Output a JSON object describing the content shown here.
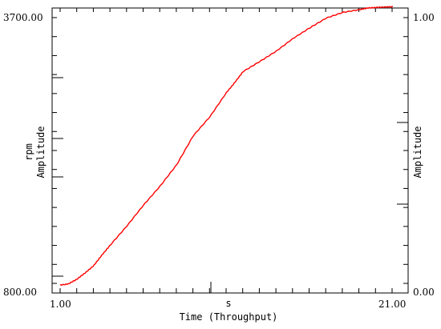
{
  "chart_data": {
    "type": "line",
    "title": "",
    "xlabel_unit": "s",
    "xlabel": "Time (Throughput)",
    "ylabel_left_unit": "rpm",
    "ylabel_left": "Amplitude",
    "ylabel_right": "Amplitude",
    "xlim": [
      1.0,
      21.0
    ],
    "ylim_left": [
      800.0,
      3700.0
    ],
    "ylim_right": [
      0.0,
      1.0
    ],
    "x_tick_labels": [
      "1.00",
      "21.00"
    ],
    "y_left_tick_labels": [
      "800.00",
      "3700.00"
    ],
    "y_right_tick_labels": [
      "0.00",
      "1.00"
    ],
    "grid": false,
    "series": [
      {
        "color": "#ff0000",
        "x": [
          1.0,
          1.5,
          2.0,
          2.5,
          3.0,
          3.5,
          4.0,
          5.0,
          6.0,
          7.0,
          8.0,
          9.0,
          10.0,
          11.0,
          11.5,
          12.0,
          13.0,
          14.0,
          15.0,
          16.0,
          17.0,
          18.0,
          19.0,
          19.5,
          20.0,
          20.5,
          21.0
        ],
        "y": [
          832,
          845,
          893,
          960,
          1033,
          1145,
          1250,
          1450,
          1670,
          1870,
          2095,
          2400,
          2600,
          2855,
          2960,
          3075,
          3180,
          3290,
          3422,
          3533,
          3637,
          3696,
          3725,
          3742,
          3748,
          3752,
          3756
        ]
      }
    ]
  }
}
